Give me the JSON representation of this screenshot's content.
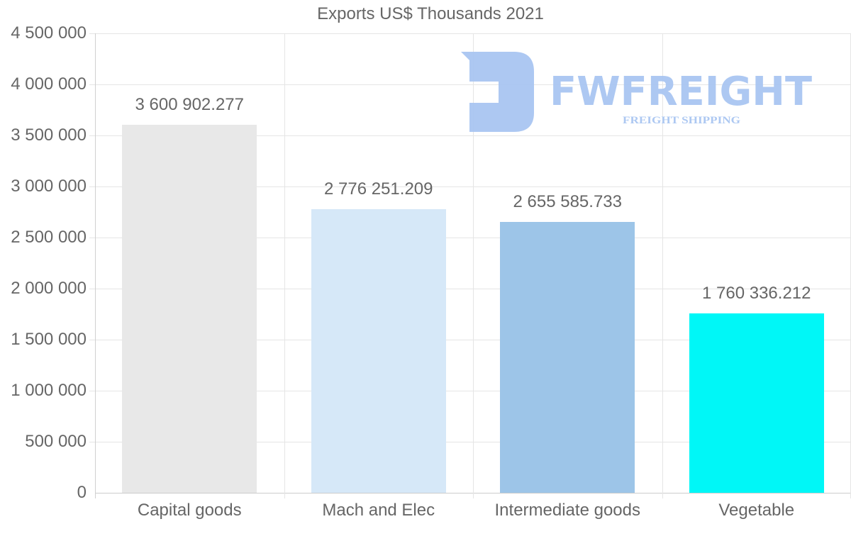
{
  "chart_data": {
    "type": "bar",
    "title": "Exports US$ Thousands 2021",
    "xlabel": "",
    "ylabel": "",
    "categories": [
      "Capital goods",
      "Mach and Elec",
      "Intermediate goods",
      "Vegetable"
    ],
    "values": [
      3600902.277,
      2776251.209,
      2655585.733,
      1760336.212
    ],
    "value_labels": [
      "3 600 902.277",
      "2 776 251.209",
      "2 655 585.733",
      "1 760 336.212"
    ],
    "colors": [
      "#e8e8e8",
      "#d6e8f8",
      "#9dc5e8",
      "#00f7f7"
    ],
    "ylim": [
      0,
      4500000
    ],
    "yticks": [
      0,
      500000,
      1000000,
      1500000,
      2000000,
      2500000,
      3000000,
      3500000,
      4000000,
      4500000
    ],
    "ytick_labels": [
      "0",
      "500 000",
      "1 000 000",
      "1 500 000",
      "2 000 000",
      "2 500 000",
      "3 000 000",
      "3 500 000",
      "4 000 000",
      "4 500 000"
    ],
    "grid": true,
    "legend": null
  },
  "watermark": {
    "brand": "FWFREIGHT",
    "tagline": "FREIGHT SHIPPING",
    "color": "#a9c6f2"
  }
}
